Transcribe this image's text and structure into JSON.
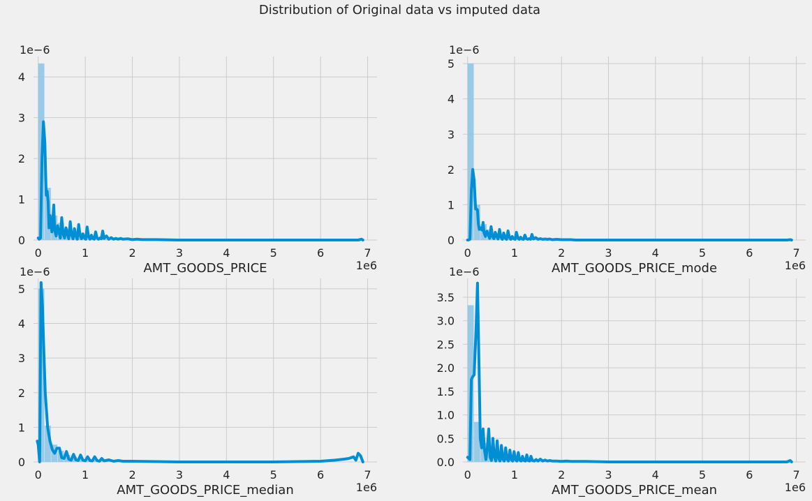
{
  "suptitle": "Distribution of Original data vs imputed data",
  "colors": {
    "background": "#f0f0f0",
    "grid": "#cbcbcb",
    "line": "#008fd5",
    "bar": "#93c7e6",
    "text": "#222222"
  },
  "chart_data": [
    {
      "type": "histogram+kde",
      "xlabel": "AMT_GOODS_PRICE",
      "x_offset_label": "1e6",
      "y_offset_label": "1e−6",
      "xlim": [
        -0.1,
        7.2
      ],
      "ylim": [
        0,
        4.5
      ],
      "xticks": [
        0,
        1,
        2,
        3,
        4,
        5,
        6,
        7
      ],
      "yticks": [
        0,
        1,
        2,
        3,
        4
      ],
      "ytick_labels": [
        "0",
        "1",
        "2",
        "3",
        "4"
      ],
      "bins": {
        "start": 0.0,
        "width": 0.138,
        "values": [
          4.33,
          1.28,
          0.6,
          0.42,
          0.28,
          0.22,
          0.18,
          0.13,
          0.1,
          0.05,
          0.03,
          0.02,
          0.01
        ]
      },
      "kde": {
        "x": [
          0.0,
          0.02,
          0.05,
          0.08,
          0.11,
          0.14,
          0.17,
          0.19,
          0.21,
          0.23,
          0.25,
          0.27,
          0.29,
          0.31,
          0.33,
          0.35,
          0.38,
          0.41,
          0.44,
          0.47,
          0.5,
          0.53,
          0.56,
          0.59,
          0.62,
          0.65,
          0.68,
          0.71,
          0.74,
          0.77,
          0.8,
          0.83,
          0.86,
          0.89,
          0.92,
          0.95,
          0.98,
          1.01,
          1.04,
          1.07,
          1.1,
          1.13,
          1.16,
          1.19,
          1.22,
          1.25,
          1.28,
          1.31,
          1.34,
          1.37,
          1.4,
          1.45,
          1.5,
          1.55,
          1.6,
          1.65,
          1.7,
          1.75,
          1.8,
          1.9,
          2.0,
          2.1,
          2.2,
          2.3,
          2.5,
          3.0,
          4.0,
          5.0,
          6.0,
          6.8,
          6.87,
          6.9
        ],
        "y": [
          0.05,
          0.02,
          0.05,
          2.0,
          2.9,
          2.4,
          1.1,
          1.2,
          0.95,
          0.3,
          0.6,
          0.45,
          0.2,
          0.5,
          0.86,
          0.25,
          0.1,
          0.35,
          0.2,
          0.05,
          0.55,
          0.15,
          0.05,
          0.3,
          0.15,
          0.03,
          0.45,
          0.12,
          0.03,
          0.28,
          0.1,
          0.02,
          0.38,
          0.12,
          0.03,
          0.15,
          0.05,
          0.02,
          0.32,
          0.08,
          0.02,
          0.12,
          0.04,
          0.02,
          0.2,
          0.05,
          0.02,
          0.05,
          0.03,
          0.22,
          0.04,
          0.1,
          0.02,
          0.06,
          0.02,
          0.04,
          0.02,
          0.04,
          0.02,
          0.03,
          0.01,
          0.02,
          0.01,
          0.01,
          0.01,
          0.0,
          0.0,
          0.0,
          0.0,
          0.0,
          0.02,
          0.0
        ]
      }
    },
    {
      "type": "histogram+kde",
      "xlabel": "AMT_GOODS_PRICE_mode",
      "x_offset_label": "1e6",
      "y_offset_label": "1e−6",
      "xlim": [
        -0.1,
        7.2
      ],
      "ylim": [
        0,
        5.2
      ],
      "xticks": [
        0,
        1,
        2,
        3,
        4,
        5,
        6,
        7
      ],
      "yticks": [
        0,
        1,
        2,
        3,
        4,
        5
      ],
      "ytick_labels": [
        "0",
        "1",
        "2",
        "3",
        "4",
        "5"
      ],
      "bins": {
        "start": 0.0,
        "width": 0.138,
        "values": [
          5.0,
          1.0,
          0.45,
          0.3,
          0.2,
          0.16,
          0.12,
          0.09,
          0.07,
          0.04,
          0.02,
          0.01
        ]
      },
      "kde": {
        "x": [
          0.0,
          0.02,
          0.05,
          0.08,
          0.11,
          0.14,
          0.17,
          0.19,
          0.21,
          0.23,
          0.25,
          0.27,
          0.29,
          0.31,
          0.33,
          0.35,
          0.38,
          0.41,
          0.44,
          0.47,
          0.5,
          0.53,
          0.56,
          0.59,
          0.62,
          0.65,
          0.68,
          0.71,
          0.74,
          0.77,
          0.8,
          0.83,
          0.86,
          0.89,
          0.92,
          0.95,
          0.98,
          1.01,
          1.04,
          1.07,
          1.1,
          1.13,
          1.16,
          1.19,
          1.22,
          1.25,
          1.28,
          1.31,
          1.34,
          1.37,
          1.4,
          1.45,
          1.5,
          1.55,
          1.6,
          1.65,
          1.7,
          1.75,
          1.8,
          1.9,
          2.0,
          2.1,
          2.2,
          2.3,
          2.5,
          3.0,
          4.0,
          5.0,
          6.0,
          6.8,
          6.87,
          6.9
        ],
        "y": [
          0.0,
          0.0,
          0.02,
          1.4,
          2.0,
          1.7,
          0.88,
          0.88,
          0.85,
          0.45,
          0.3,
          0.35,
          0.3,
          0.28,
          0.5,
          0.2,
          0.1,
          0.25,
          0.15,
          0.05,
          0.38,
          0.1,
          0.04,
          0.22,
          0.1,
          0.03,
          0.3,
          0.08,
          0.02,
          0.2,
          0.06,
          0.02,
          0.26,
          0.08,
          0.02,
          0.1,
          0.04,
          0.02,
          0.22,
          0.06,
          0.02,
          0.08,
          0.03,
          0.02,
          0.14,
          0.04,
          0.02,
          0.04,
          0.02,
          0.16,
          0.03,
          0.07,
          0.02,
          0.04,
          0.02,
          0.03,
          0.02,
          0.03,
          0.01,
          0.02,
          0.01,
          0.01,
          0.01,
          0.0,
          0.0,
          0.0,
          0.0,
          0.0,
          0.0,
          0.0,
          0.01,
          0.0
        ]
      }
    },
    {
      "type": "histogram+kde",
      "xlabel": "AMT_GOODS_PRICE_median",
      "x_offset_label": "1e6",
      "y_offset_label": "1e−6",
      "xlim": [
        -0.1,
        7.2
      ],
      "ylim": [
        0,
        5.3
      ],
      "xticks": [
        0,
        1,
        2,
        3,
        4,
        5,
        6,
        7
      ],
      "yticks": [
        0,
        1,
        2,
        3,
        4,
        5
      ],
      "ytick_labels": [
        "0",
        "1",
        "2",
        "3",
        "4",
        "5"
      ],
      "bins": {
        "start": 0.0,
        "width": 0.138,
        "values": [
          5.0,
          1.05,
          0.5,
          0.32,
          0.2,
          0.15,
          0.11,
          0.08,
          0.06,
          0.04,
          0.02,
          0.01
        ]
      },
      "kde": {
        "x": [
          -0.02,
          0.0,
          0.03,
          0.06,
          0.09,
          0.12,
          0.15,
          0.2,
          0.25,
          0.3,
          0.35,
          0.4,
          0.45,
          0.5,
          0.55,
          0.6,
          0.65,
          0.7,
          0.75,
          0.8,
          0.85,
          0.9,
          0.95,
          1.0,
          1.05,
          1.1,
          1.15,
          1.2,
          1.25,
          1.3,
          1.35,
          1.4,
          1.5,
          1.6,
          1.7,
          1.8,
          2.0,
          2.5,
          3.0,
          4.0,
          5.0,
          5.5,
          6.0,
          6.3,
          6.5,
          6.6,
          6.7,
          6.75,
          6.8,
          6.85,
          6.9
        ],
        "y": [
          0.6,
          0.5,
          0.0,
          5.18,
          4.5,
          3.2,
          2.0,
          1.0,
          0.6,
          0.35,
          0.25,
          0.4,
          0.4,
          0.12,
          0.1,
          0.3,
          0.08,
          0.05,
          0.22,
          0.06,
          0.04,
          0.2,
          0.05,
          0.03,
          0.15,
          0.04,
          0.03,
          0.15,
          0.04,
          0.02,
          0.1,
          0.03,
          0.06,
          0.02,
          0.04,
          0.02,
          0.02,
          0.01,
          0.0,
          0.0,
          0.0,
          0.01,
          0.02,
          0.05,
          0.08,
          0.1,
          0.15,
          0.05,
          0.25,
          0.18,
          0.0
        ]
      }
    },
    {
      "type": "histogram+kde",
      "xlabel": "AMT_GOODS_PRICE_mean",
      "x_offset_label": "1e6",
      "y_offset_label": "1e−6",
      "xlim": [
        -0.1,
        7.2
      ],
      "ylim": [
        0,
        3.9
      ],
      "xticks": [
        0,
        1,
        2,
        3,
        4,
        5,
        6,
        7
      ],
      "yticks": [
        0,
        0.5,
        1,
        1.5,
        2,
        2.5,
        3,
        3.5
      ],
      "ytick_labels": [
        "0.0",
        "0.5",
        "1.0",
        "1.5",
        "2.0",
        "2.5",
        "3.0",
        "3.5"
      ],
      "bins": {
        "start": 0.0,
        "width": 0.138,
        "values": [
          3.33,
          0.85,
          0.4,
          0.28,
          0.2,
          0.15,
          0.11,
          0.08,
          0.06,
          0.04,
          0.02,
          0.01
        ]
      },
      "kde": {
        "x": [
          0.0,
          0.02,
          0.05,
          0.08,
          0.1,
          0.14,
          0.18,
          0.21,
          0.24,
          0.27,
          0.3,
          0.33,
          0.36,
          0.39,
          0.42,
          0.45,
          0.48,
          0.51,
          0.54,
          0.57,
          0.6,
          0.63,
          0.66,
          0.69,
          0.72,
          0.75,
          0.78,
          0.81,
          0.84,
          0.87,
          0.9,
          0.93,
          0.96,
          0.99,
          1.02,
          1.05,
          1.08,
          1.11,
          1.14,
          1.17,
          1.2,
          1.23,
          1.26,
          1.29,
          1.32,
          1.35,
          1.38,
          1.42,
          1.46,
          1.5,
          1.55,
          1.6,
          1.65,
          1.7,
          1.75,
          1.8,
          1.9,
          2.0,
          2.1,
          2.2,
          2.3,
          2.5,
          3.0,
          4.0,
          5.0,
          6.0,
          6.8,
          6.87,
          6.9
        ],
        "y": [
          0.1,
          0.08,
          0.05,
          1.75,
          1.8,
          1.85,
          2.8,
          3.8,
          2.2,
          0.5,
          0.3,
          0.7,
          0.25,
          0.05,
          0.3,
          0.7,
          0.1,
          0.03,
          0.5,
          0.1,
          0.02,
          0.45,
          0.08,
          0.02,
          0.35,
          0.06,
          0.02,
          0.3,
          0.06,
          0.02,
          0.25,
          0.05,
          0.02,
          0.22,
          0.05,
          0.02,
          0.2,
          0.04,
          0.02,
          0.12,
          0.03,
          0.02,
          0.15,
          0.03,
          0.02,
          0.12,
          0.03,
          0.02,
          0.05,
          0.02,
          0.06,
          0.02,
          0.04,
          0.02,
          0.03,
          0.02,
          0.02,
          0.01,
          0.02,
          0.01,
          0.01,
          0.01,
          0.0,
          0.0,
          0.0,
          0.0,
          0.0,
          0.03,
          0.0
        ]
      }
    }
  ]
}
